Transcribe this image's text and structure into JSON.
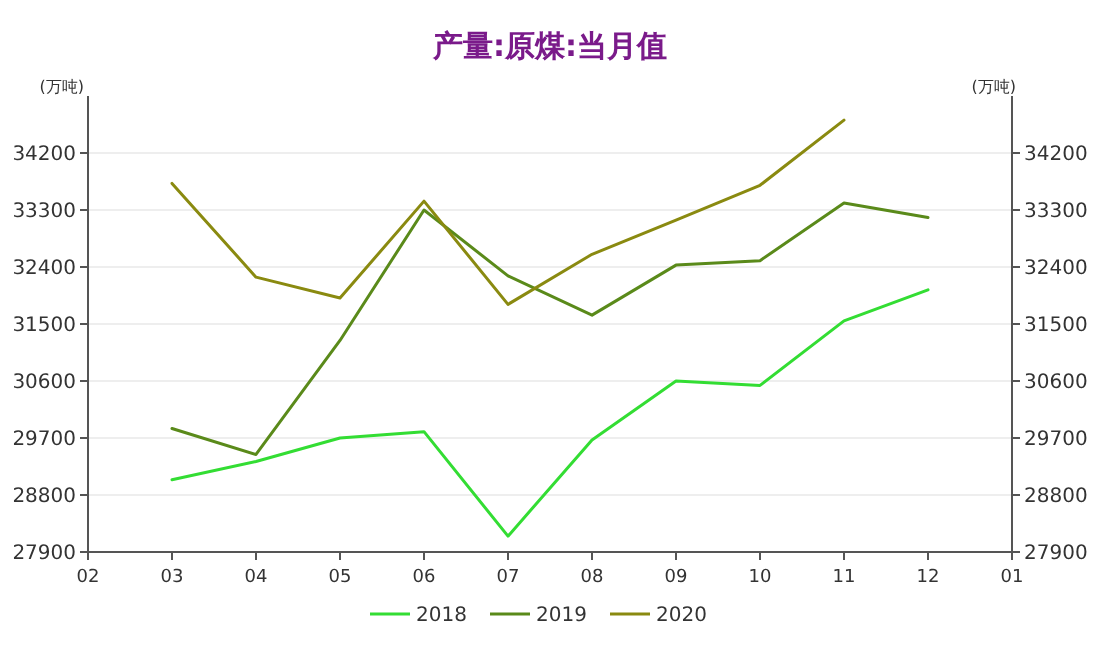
{
  "chart_data": {
    "type": "line",
    "title": "产量:原煤:当月值",
    "ylabel": "(万吨)",
    "y2label": "(万吨)",
    "categories": [
      "02",
      "03",
      "04",
      "05",
      "06",
      "07",
      "08",
      "09",
      "10",
      "11",
      "12",
      "01"
    ],
    "series": [
      {
        "name": "2018",
        "color": "#33dd33",
        "values": [
          null,
          29040,
          29330,
          29700,
          29800,
          28150,
          29670,
          30600,
          30530,
          31550,
          32040,
          null
        ]
      },
      {
        "name": "2019",
        "color": "#5a8a1a",
        "values": [
          null,
          29850,
          29440,
          31240,
          33300,
          32260,
          31640,
          32430,
          32500,
          33410,
          33180,
          null
        ]
      },
      {
        "name": "2020",
        "color": "#8a8a10",
        "values": [
          null,
          33720,
          32240,
          31910,
          33440,
          31810,
          32600,
          33140,
          33690,
          34720,
          null,
          null
        ]
      }
    ],
    "ylim": [
      27900,
      35100
    ],
    "yticks": [
      27900,
      28800,
      29700,
      30600,
      31500,
      32400,
      33300,
      34200
    ],
    "y2lim": [
      27900,
      35100
    ],
    "y2ticks": [
      27900,
      28800,
      29700,
      30600,
      31500,
      32400,
      33300,
      34200
    ],
    "grid": "y",
    "legend": "bottom",
    "line_style": "solid"
  }
}
